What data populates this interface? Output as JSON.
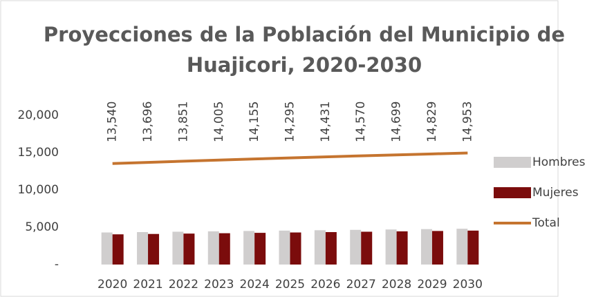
{
  "chart_data": {
    "type": "bar_line",
    "title": "Proyecciones de la Población del Municipio de Huajicori, 2020-2030",
    "categories": [
      "2020",
      "2021",
      "2022",
      "2023",
      "2024",
      "2025",
      "2026",
      "2027",
      "2028",
      "2029",
      "2030"
    ],
    "series": [
      {
        "name": "Hombres",
        "type": "bar",
        "color": "#d0cece",
        "values": [
          4300,
          4350,
          4400,
          4450,
          4500,
          4550,
          4600,
          4650,
          4700,
          4750,
          4800
        ]
      },
      {
        "name": "Mujeres",
        "type": "bar",
        "color": "#7b0c0c",
        "values": [
          4050,
          4100,
          4150,
          4200,
          4250,
          4300,
          4350,
          4400,
          4450,
          4500,
          4550
        ]
      },
      {
        "name": "Total",
        "type": "line",
        "color": "#c5742f",
        "values": [
          13540,
          13696,
          13851,
          14005,
          14155,
          14295,
          14431,
          14570,
          14699,
          14829,
          14953
        ],
        "value_labels": [
          "13,540",
          "13,696",
          "13,851",
          "14,005",
          "14,155",
          "14,295",
          "14,431",
          "14,570",
          "14,699",
          "14,829",
          "14,953"
        ]
      }
    ],
    "ylim": [
      0,
      22000
    ],
    "yticks": [
      {
        "value": 0,
        "label": "-"
      },
      {
        "value": 5000,
        "label": "5,000"
      },
      {
        "value": 10000,
        "label": "10,000"
      },
      {
        "value": 15000,
        "label": "15,000"
      },
      {
        "value": 20000,
        "label": "20,000"
      }
    ],
    "grid": false,
    "legend": "right"
  }
}
